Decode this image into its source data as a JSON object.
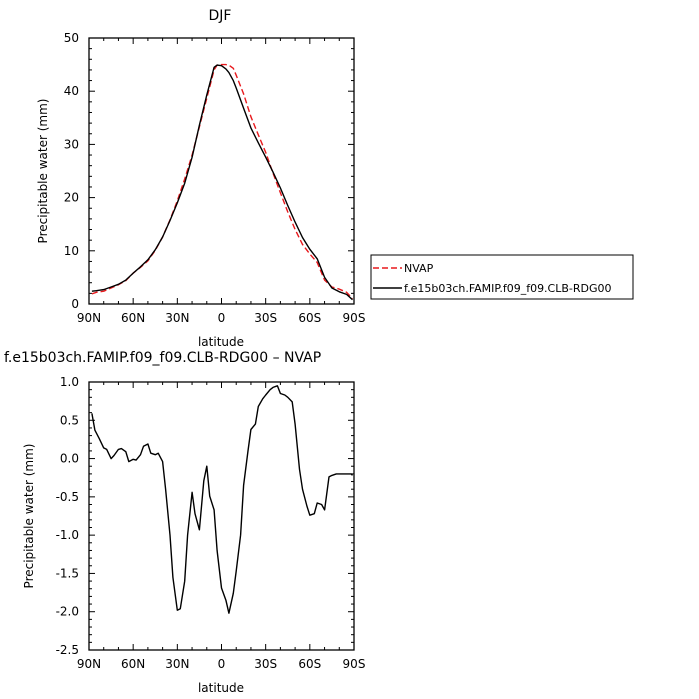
{
  "chart_data": [
    {
      "type": "line",
      "title": "DJF",
      "xlabel": "latitude",
      "ylabel": "Precipitable water (mm)",
      "xlim": [
        90,
        -90
      ],
      "ylim": [
        0,
        50
      ],
      "yticks": [
        0,
        10,
        20,
        30,
        40,
        50
      ],
      "ytick_labels": [
        "0",
        "10",
        "20",
        "30",
        "40",
        "50"
      ],
      "xticks": [
        90,
        60,
        30,
        0,
        -30,
        -60,
        -90
      ],
      "xtick_labels": [
        "90N",
        "60N",
        "30N",
        "0",
        "30S",
        "60S",
        "90S"
      ],
      "grid": false,
      "legend": "right-outside",
      "series": [
        {
          "name": "NVAP",
          "color": "#e8191d",
          "dash": "dashed",
          "x": [
            88,
            85,
            80,
            75,
            70,
            65,
            60,
            55,
            50,
            45,
            40,
            35,
            30,
            25,
            20,
            15,
            10,
            5,
            3,
            0,
            -3,
            -5,
            -8,
            -10,
            -15,
            -20,
            -25,
            -30,
            -35,
            -40,
            -45,
            -50,
            -55,
            -60,
            -65,
            -70,
            -75,
            -80,
            -85,
            -89
          ],
          "y": [
            1.9,
            2.2,
            2.4,
            3.0,
            3.6,
            4.4,
            5.8,
            6.9,
            8.1,
            10.1,
            12.6,
            15.8,
            19.4,
            23.5,
            28.0,
            33.3,
            38.7,
            44.0,
            44.9,
            45.0,
            45.0,
            44.9,
            44.3,
            43.0,
            39.5,
            35.2,
            31.8,
            28.5,
            24.6,
            20.9,
            17.3,
            14.0,
            11.2,
            9.4,
            7.8,
            4.5,
            3.2,
            2.8,
            2.2,
            1.0
          ]
        },
        {
          "name": "f.e15b03ch.FAMIP.f09_f09.CLB-RDG00",
          "color": "#000000",
          "dash": "solid",
          "x": [
            88,
            85,
            80,
            75,
            70,
            65,
            60,
            55,
            50,
            45,
            40,
            35,
            30,
            25,
            20,
            15,
            10,
            5,
            3,
            0,
            -3,
            -5,
            -8,
            -10,
            -15,
            -20,
            -25,
            -30,
            -35,
            -40,
            -45,
            -50,
            -55,
            -60,
            -65,
            -70,
            -75,
            -80,
            -85,
            -89
          ],
          "y": [
            2.4,
            2.5,
            2.7,
            3.2,
            3.7,
            4.5,
            5.8,
            7.0,
            8.3,
            10.2,
            12.6,
            15.7,
            19.0,
            22.7,
            27.6,
            33.6,
            39.3,
            44.5,
            44.9,
            44.8,
            44.2,
            43.5,
            42.0,
            40.6,
            36.8,
            33.1,
            30.3,
            27.6,
            24.8,
            21.8,
            18.5,
            15.4,
            12.5,
            10.3,
            8.5,
            5.0,
            3.0,
            2.3,
            1.8,
            0.8
          ]
        }
      ]
    },
    {
      "type": "line",
      "title": "f.e15b03ch.FAMIP.f09_f09.CLB-RDG00 – NVAP",
      "xlabel": "latitude",
      "ylabel": "Precipitable water (mm)",
      "xlim": [
        90,
        -90
      ],
      "ylim": [
        -2.5,
        1.0
      ],
      "yticks": [
        -2.5,
        -2.0,
        -1.5,
        -1.0,
        -0.5,
        0.0,
        0.5,
        1.0
      ],
      "ytick_labels": [
        "-2.5",
        "-2.0",
        "-1.5",
        "-1.0",
        "-0.5",
        "0.0",
        "0.5",
        "1.0"
      ],
      "xticks": [
        90,
        60,
        30,
        0,
        -30,
        -60,
        -90
      ],
      "xtick_labels": [
        "90N",
        "60N",
        "30N",
        "0",
        "30S",
        "60S",
        "90S"
      ],
      "grid": false,
      "series": [
        {
          "color": "#000000",
          "dash": "solid",
          "x": [
            88,
            86,
            83,
            80,
            78,
            75,
            73,
            70,
            68,
            65,
            63,
            60,
            58,
            55,
            53,
            50,
            48,
            45,
            43,
            40,
            38,
            35,
            33,
            30,
            28,
            25,
            23,
            20,
            18,
            15,
            12,
            10,
            8,
            5,
            3,
            0,
            -3,
            -5,
            -8,
            -10,
            -13,
            -15,
            -18,
            -20,
            -23,
            -25,
            -28,
            -30,
            -33,
            -35,
            -38,
            -40,
            -43,
            -45,
            -48,
            -50,
            -53,
            -55,
            -58,
            -60,
            -63,
            -65,
            -68,
            -70,
            -73,
            -75,
            -78,
            -80,
            -83,
            -85,
            -88,
            -89
          ],
          "y": [
            0.59,
            0.37,
            0.26,
            0.14,
            0.12,
            0.0,
            0.04,
            0.12,
            0.13,
            0.09,
            -0.04,
            -0.01,
            -0.02,
            0.05,
            0.16,
            0.19,
            0.07,
            0.05,
            0.07,
            -0.04,
            -0.4,
            -1.0,
            -1.55,
            -1.98,
            -1.96,
            -1.6,
            -1.0,
            -0.44,
            -0.72,
            -0.93,
            -0.29,
            -0.1,
            -0.49,
            -0.67,
            -1.2,
            -1.69,
            -1.85,
            -2.02,
            -1.76,
            -1.47,
            -1.0,
            -0.35,
            0.1,
            0.38,
            0.45,
            0.68,
            0.78,
            0.83,
            0.9,
            0.93,
            0.95,
            0.85,
            0.83,
            0.8,
            0.74,
            0.45,
            -0.14,
            -0.4,
            -0.62,
            -0.74,
            -0.72,
            -0.58,
            -0.6,
            -0.67,
            -0.24,
            -0.22,
            -0.2,
            -0.2,
            -0.2,
            -0.2,
            -0.2,
            -0.22
          ]
        }
      ]
    }
  ]
}
